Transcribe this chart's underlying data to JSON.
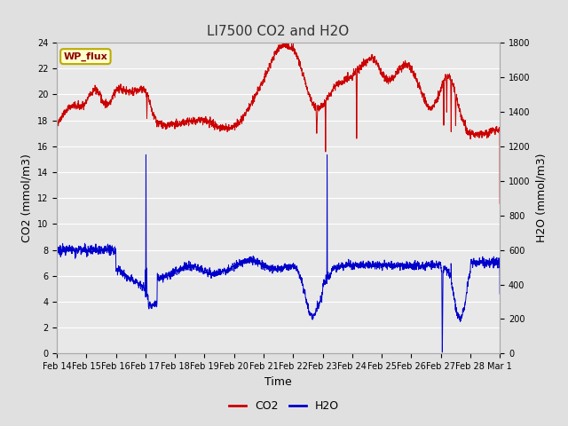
{
  "title": "LI7500 CO2 and H2O",
  "xlabel": "Time",
  "ylabel_left": "CO2 (mmol/m3)",
  "ylabel_right": "H2O (mmol/m3)",
  "ylim_left": [
    0,
    24
  ],
  "ylim_right": [
    0,
    1800
  ],
  "yticks_left": [
    0,
    2,
    4,
    6,
    8,
    10,
    12,
    14,
    16,
    18,
    20,
    22,
    24
  ],
  "yticks_right": [
    0,
    200,
    400,
    600,
    800,
    1000,
    1200,
    1400,
    1600,
    1800
  ],
  "x_tick_labels": [
    "Feb 14",
    "Feb 15",
    "Feb 16",
    "Feb 17",
    "Feb 18",
    "Feb 19",
    "Feb 20",
    "Feb 21",
    "Feb 22",
    "Feb 23",
    "Feb 24",
    "Feb 25",
    "Feb 26",
    "Feb 27",
    "Feb 28",
    "Mar 1"
  ],
  "co2_color": "#cc0000",
  "h2o_color": "#0000cc",
  "bg_color": "#e0e0e0",
  "plot_bg_color": "#e8e8e8",
  "grid_color": "#ffffff",
  "watermark_text": "WP_flux",
  "watermark_bg": "#ffffcc",
  "watermark_border": "#bbaa00",
  "title_color": "#333333",
  "legend_co2_color": "#cc0000",
  "legend_h2o_color": "#0000cc",
  "linewidth": 0.7,
  "title_fontsize": 11,
  "tick_fontsize": 7,
  "label_fontsize": 9
}
